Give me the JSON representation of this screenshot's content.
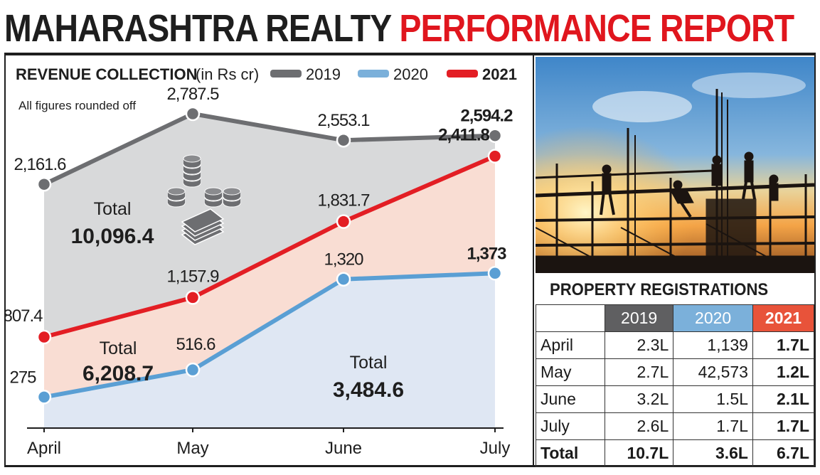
{
  "headline": {
    "part1": "MAHARASHTRA REALTY",
    "part2": "PERFORMANCE REPORT"
  },
  "chart_data": {
    "type": "area",
    "title": "REVENUE COLLECTION",
    "unit": "(in Rs cr)",
    "note": "All figures rounded off",
    "categories": [
      "April",
      "May",
      "June",
      "July"
    ],
    "ylim": [
      0,
      3000
    ],
    "series": [
      {
        "name": "2019",
        "color": "#6d6e71",
        "fill": "#d8d9da",
        "values": [
          2161.6,
          2787.5,
          2553.1,
          2594.2
        ],
        "labels": [
          "2,161.6",
          "2,787.5",
          "2,553.1",
          "2,594.2"
        ],
        "total_label": "Total",
        "total_value": "10,096.4"
      },
      {
        "name": "2021",
        "color": "#e31e24",
        "fill": "#f9ddd3",
        "values": [
          807.4,
          1157.9,
          1831.7,
          2411.8
        ],
        "labels": [
          "807.4",
          "1,157.9",
          "1,831.7",
          "2,411.8"
        ],
        "total_label": "Total",
        "total_value": "6,208.7"
      },
      {
        "name": "2020",
        "color": "#5a9fd4",
        "fill": "#dfe7f3",
        "values": [
          275,
          516.6,
          1320,
          1373
        ],
        "labels": [
          "275",
          "516.6",
          "1,320",
          "1,373"
        ],
        "total_label": "Total",
        "total_value": "3,484.6"
      }
    ],
    "legend": [
      {
        "name": "2019",
        "color": "#6d6e71"
      },
      {
        "name": "2020",
        "color": "#7bb0da"
      },
      {
        "name": "2021",
        "color": "#e31e24"
      }
    ],
    "legend_position": "top",
    "grid": false
  },
  "photo": {
    "icon": "construction-workers-silhouette"
  },
  "registrations": {
    "title": "PROPERTY REGISTRATIONS",
    "headers": [
      "2019",
      "2020",
      "2021"
    ],
    "rows": [
      {
        "month": "April",
        "v2019": "2.3L",
        "v2020": "1,139",
        "v2021": "1.7L"
      },
      {
        "month": "May",
        "v2019": "2.7L",
        "v2020": "42,573",
        "v2021": "1.2L"
      },
      {
        "month": "June",
        "v2019": "3.2L",
        "v2020": "1.5L",
        "v2021": "2.1L"
      },
      {
        "month": "July",
        "v2019": "2.6L",
        "v2020": "1.7L",
        "v2021": "1.7L"
      }
    ],
    "total": {
      "month": "Total",
      "v2019": "10.7L",
      "v2020": "3.6L",
      "v2021": "6.7L"
    }
  }
}
